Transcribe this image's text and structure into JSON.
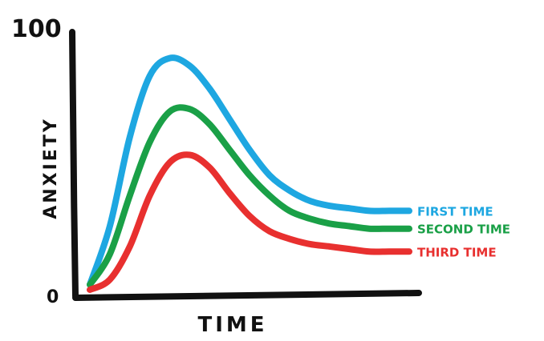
{
  "chart_data": {
    "type": "line",
    "title": "",
    "xlabel": "TIME",
    "ylabel": "ANXIETY",
    "ylim": [
      0,
      100
    ],
    "y_tick_labels": [
      "0",
      "100"
    ],
    "grid": false,
    "legend": "right, inline at line ends",
    "x": [
      0,
      1,
      2,
      3,
      4,
      5,
      6,
      7,
      8,
      9,
      10,
      11,
      12,
      13,
      14,
      15,
      16
    ],
    "series": [
      {
        "name": "FIRST TIME",
        "color": "#1ea7e1",
        "values": [
          2,
          25,
          60,
          84,
          91,
          88,
          79,
          67,
          55,
          45,
          39,
          35,
          33,
          32,
          31,
          31,
          31
        ]
      },
      {
        "name": "SECOND TIME",
        "color": "#1aa047",
        "values": [
          2,
          14,
          37,
          58,
          70,
          71,
          65,
          55,
          45,
          37,
          31,
          28,
          26,
          25,
          24,
          24,
          24
        ]
      },
      {
        "name": "THIRD TIME",
        "color": "#e8302f",
        "values": [
          0,
          4,
          17,
          37,
          50,
          53,
          48,
          38,
          29,
          23,
          20,
          18,
          17,
          16,
          15,
          15,
          15
        ]
      }
    ]
  }
}
